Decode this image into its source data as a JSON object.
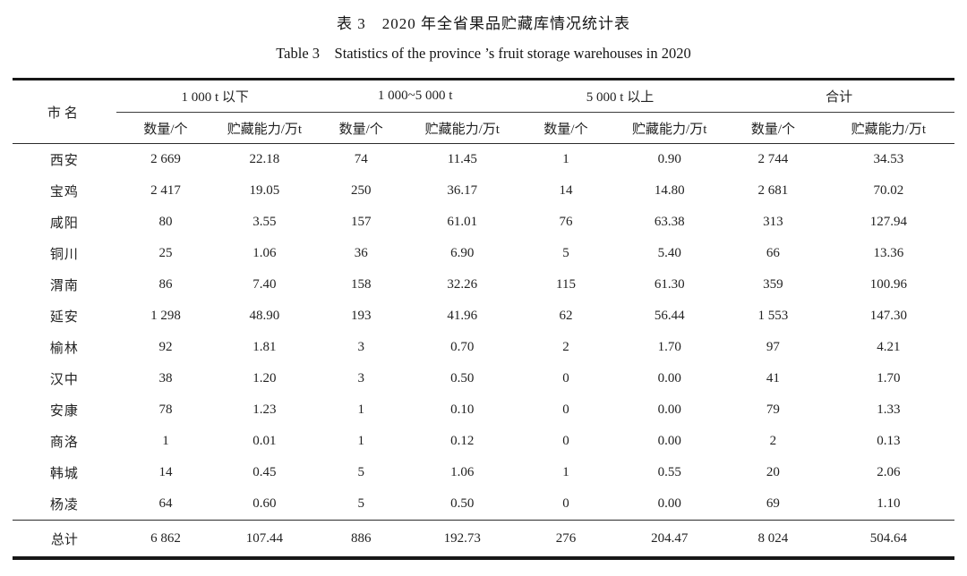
{
  "title": {
    "zh": "表 3　2020 年全省果品贮藏库情况统计表",
    "en": "Table 3　Statistics of the province ’s fruit storage warehouses in 2020"
  },
  "table": {
    "city_header": "市名",
    "groups": [
      {
        "label": "1 000 t 以下"
      },
      {
        "label": "1 000~5 000 t"
      },
      {
        "label": "5 000 t 以上"
      },
      {
        "label": "合计"
      }
    ],
    "sub_headers": {
      "count": "数量/个",
      "capacity": "贮藏能力/万t"
    },
    "rows": [
      {
        "city": "西安",
        "values": [
          "2 669",
          "22.18",
          "74",
          "11.45",
          "1",
          "0.90",
          "2 744",
          "34.53"
        ]
      },
      {
        "city": "宝鸡",
        "values": [
          "2 417",
          "19.05",
          "250",
          "36.17",
          "14",
          "14.80",
          "2 681",
          "70.02"
        ]
      },
      {
        "city": "咸阳",
        "values": [
          "80",
          "3.55",
          "157",
          "61.01",
          "76",
          "63.38",
          "313",
          "127.94"
        ]
      },
      {
        "city": "铜川",
        "values": [
          "25",
          "1.06",
          "36",
          "6.90",
          "5",
          "5.40",
          "66",
          "13.36"
        ]
      },
      {
        "city": "渭南",
        "values": [
          "86",
          "7.40",
          "158",
          "32.26",
          "115",
          "61.30",
          "359",
          "100.96"
        ]
      },
      {
        "city": "延安",
        "values": [
          "1 298",
          "48.90",
          "193",
          "41.96",
          "62",
          "56.44",
          "1 553",
          "147.30"
        ]
      },
      {
        "city": "榆林",
        "values": [
          "92",
          "1.81",
          "3",
          "0.70",
          "2",
          "1.70",
          "97",
          "4.21"
        ]
      },
      {
        "city": "汉中",
        "values": [
          "38",
          "1.20",
          "3",
          "0.50",
          "0",
          "0.00",
          "41",
          "1.70"
        ]
      },
      {
        "city": "安康",
        "values": [
          "78",
          "1.23",
          "1",
          "0.10",
          "0",
          "0.00",
          "79",
          "1.33"
        ]
      },
      {
        "city": "商洛",
        "values": [
          "1",
          "0.01",
          "1",
          "0.12",
          "0",
          "0.00",
          "2",
          "0.13"
        ]
      },
      {
        "city": "韩城",
        "values": [
          "14",
          "0.45",
          "5",
          "1.06",
          "1",
          "0.55",
          "20",
          "2.06"
        ]
      },
      {
        "city": "杨凌",
        "values": [
          "64",
          "0.60",
          "5",
          "0.50",
          "0",
          "0.00",
          "69",
          "1.10"
        ]
      }
    ],
    "total": {
      "city": "总计",
      "values": [
        "6 862",
        "107.44",
        "886",
        "192.73",
        "276",
        "204.47",
        "8 024",
        "504.64"
      ]
    }
  }
}
